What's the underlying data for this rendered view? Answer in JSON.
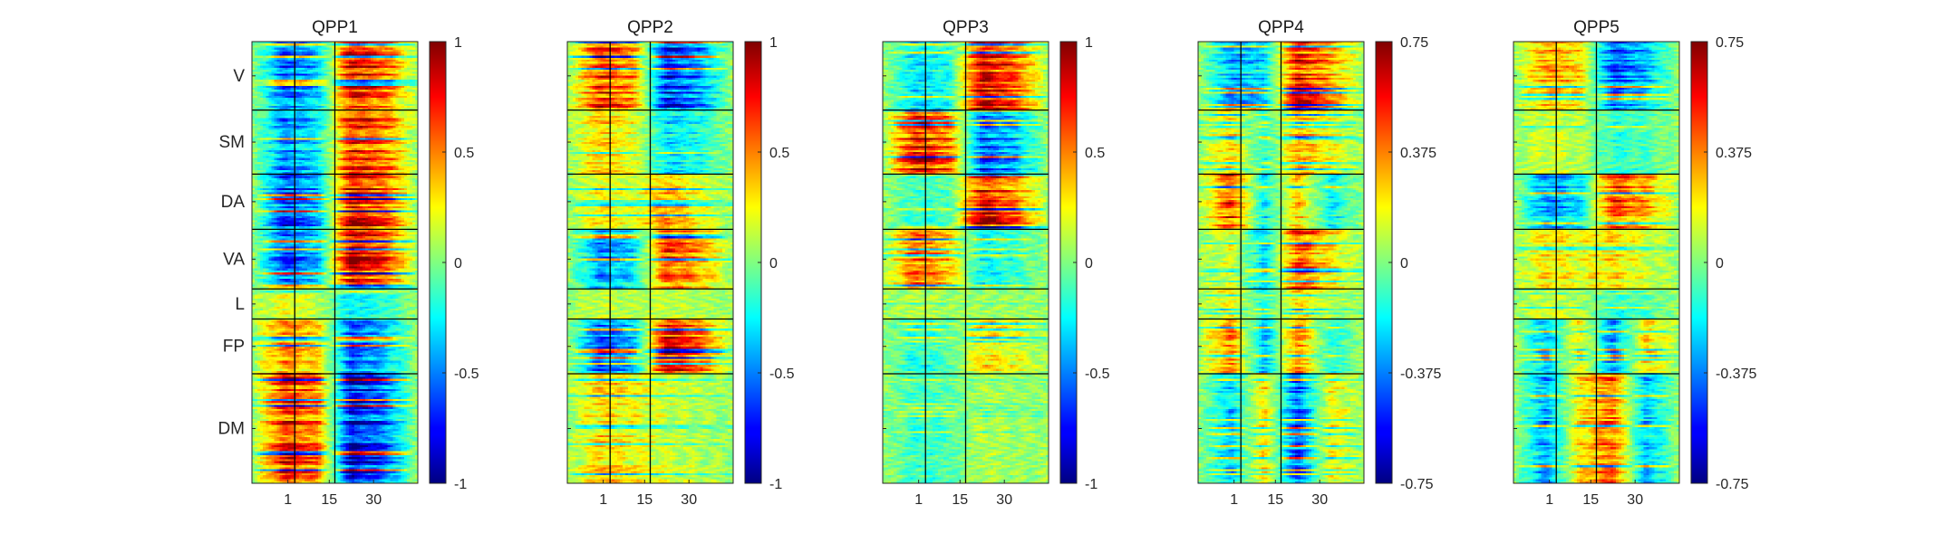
{
  "chart_data": [
    {
      "type": "heatmap",
      "title": "QPP1",
      "x_ticks": [
        "1",
        "15",
        "30"
      ],
      "x_range": [
        1,
        30
      ],
      "networks": [
        "V",
        "SM",
        "DA",
        "VA",
        "L",
        "FP",
        "DM"
      ],
      "colorbar_ticks": [
        "1",
        "0.5",
        "0",
        "-0.5",
        "-1"
      ],
      "clim": [
        -1,
        1
      ],
      "colormap": "jet",
      "pattern_profile": {
        "V": [
          0.05,
          -0.55,
          -0.35,
          0.75,
          0.55,
          0.05
        ],
        "SM": [
          0.05,
          -0.5,
          -0.3,
          0.7,
          0.55,
          0.05
        ],
        "DA": [
          0.05,
          -0.65,
          -0.4,
          0.8,
          0.6,
          0.05
        ],
        "VA": [
          0.05,
          -0.6,
          -0.35,
          0.85,
          0.6,
          0.05
        ],
        "L": [
          0.05,
          0.2,
          0.1,
          -0.25,
          -0.15,
          0.05
        ],
        "FP": [
          0.05,
          0.45,
          0.3,
          -0.55,
          -0.35,
          0.05
        ],
        "DM": [
          0.05,
          0.7,
          0.5,
          -0.8,
          -0.55,
          0.05
        ]
      }
    },
    {
      "type": "heatmap",
      "title": "QPP2",
      "x_ticks": [
        "1",
        "15",
        "30"
      ],
      "x_range": [
        1,
        30
      ],
      "networks": [
        "V",
        "SM",
        "DA",
        "VA",
        "L",
        "FP",
        "DM"
      ],
      "colorbar_ticks": [
        "1",
        "0.5",
        "0",
        "-0.5",
        "-1"
      ],
      "clim": [
        -1,
        1
      ],
      "colormap": "jet",
      "pattern_profile": {
        "V": [
          0.05,
          0.65,
          0.45,
          -0.7,
          -0.45,
          0.05
        ],
        "SM": [
          0.05,
          0.35,
          0.2,
          -0.3,
          -0.2,
          0.05
        ],
        "DA": [
          0.05,
          0.25,
          0.15,
          0.4,
          0.2,
          0.05
        ],
        "VA": [
          0.05,
          -0.45,
          -0.3,
          0.6,
          0.4,
          0.05
        ],
        "L": [
          0.05,
          0.15,
          0.1,
          0.15,
          0.1,
          0.05
        ],
        "FP": [
          0.05,
          -0.55,
          -0.35,
          0.75,
          0.5,
          0.05
        ],
        "DM": [
          0.05,
          0.35,
          0.25,
          0.15,
          0.1,
          0.05
        ]
      }
    },
    {
      "type": "heatmap",
      "title": "QPP3",
      "x_ticks": [
        "1",
        "15",
        "30"
      ],
      "x_range": [
        1,
        30
      ],
      "networks": [
        "V",
        "SM",
        "DA",
        "VA",
        "L",
        "FP",
        "DM"
      ],
      "colorbar_ticks": [
        "1",
        "0.5",
        "0",
        "-0.5",
        "-1"
      ],
      "clim": [
        -1,
        1
      ],
      "colormap": "jet",
      "pattern_profile": {
        "V": [
          0.05,
          -0.3,
          -0.2,
          0.8,
          0.55,
          0.05
        ],
        "SM": [
          0.05,
          0.8,
          0.55,
          -0.6,
          -0.4,
          0.05
        ],
        "DA": [
          0.05,
          -0.15,
          -0.1,
          0.75,
          0.5,
          0.05
        ],
        "VA": [
          0.05,
          0.55,
          0.35,
          -0.25,
          -0.15,
          0.05
        ],
        "L": [
          0.05,
          0.1,
          0.05,
          0.05,
          0.05,
          0.05
        ],
        "FP": [
          0.05,
          -0.2,
          -0.1,
          0.3,
          0.2,
          0.05
        ],
        "DM": [
          0.05,
          -0.15,
          -0.1,
          0.1,
          0.05,
          0.05
        ]
      }
    },
    {
      "type": "heatmap",
      "title": "QPP4",
      "x_ticks": [
        "1",
        "15",
        "30"
      ],
      "x_range": [
        1,
        30
      ],
      "networks": [
        "V",
        "SM",
        "DA",
        "VA",
        "L",
        "FP",
        "DM"
      ],
      "colorbar_ticks": [
        "0.75",
        "0.375",
        "0",
        "-0.375",
        "-0.75"
      ],
      "clim": [
        -0.75,
        0.75
      ],
      "colormap": "jet",
      "pattern_profile": {
        "V": [
          0.05,
          -0.4,
          -0.3,
          0.7,
          0.4,
          0.05
        ],
        "SM": [
          0.05,
          0.35,
          -0.2,
          0.45,
          0.25,
          0.05
        ],
        "DA": [
          0.05,
          0.7,
          -0.3,
          0.4,
          -0.3,
          0.05
        ],
        "VA": [
          0.05,
          0.2,
          -0.35,
          0.65,
          0.3,
          0.05
        ],
        "L": [
          0.05,
          0.25,
          -0.2,
          0.3,
          0.1,
          0.05
        ],
        "FP": [
          0.05,
          0.5,
          -0.4,
          0.5,
          -0.2,
          0.05
        ],
        "DM": [
          0.05,
          -0.35,
          0.3,
          -0.6,
          0.25,
          0.05
        ]
      }
    },
    {
      "type": "heatmap",
      "title": "QPP5",
      "x_ticks": [
        "1",
        "15",
        "30"
      ],
      "x_range": [
        1,
        30
      ],
      "networks": [
        "V",
        "SM",
        "DA",
        "VA",
        "L",
        "FP",
        "DM"
      ],
      "colorbar_ticks": [
        "0.75",
        "0.375",
        "0",
        "-0.375",
        "-0.75"
      ],
      "clim": [
        -0.75,
        0.75
      ],
      "colormap": "jet",
      "pattern_profile": {
        "V": [
          0.05,
          0.4,
          0.3,
          -0.55,
          -0.35,
          0.05
        ],
        "SM": [
          0.05,
          0.15,
          0.1,
          -0.15,
          -0.1,
          0.05
        ],
        "DA": [
          0.05,
          -0.45,
          -0.3,
          0.6,
          0.4,
          0.05
        ],
        "VA": [
          0.05,
          0.3,
          0.2,
          0.3,
          0.15,
          0.05
        ],
        "L": [
          0.05,
          0.15,
          0.1,
          -0.15,
          -0.1,
          0.05
        ],
        "FP": [
          0.05,
          -0.35,
          0.25,
          -0.45,
          0.3,
          0.05
        ],
        "DM": [
          0.05,
          -0.45,
          0.3,
          0.55,
          -0.4,
          0.05
        ]
      }
    }
  ]
}
